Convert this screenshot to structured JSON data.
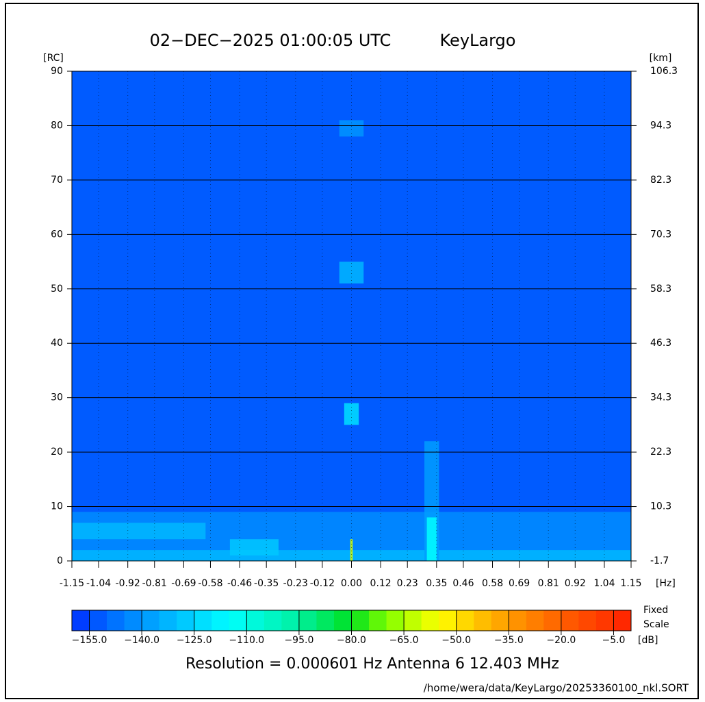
{
  "chart_data": {
    "type": "heatmap",
    "title": "02−DEC−2025 01:00:05 UTC",
    "station": "KeyLargo",
    "y_label": "[RC]",
    "y2_label": "[km]",
    "x_label": "[Hz]",
    "colorbar_label": "[dB]",
    "colorbar_note": [
      "Fixed",
      "Scale"
    ],
    "info": "Resolution = 0.000601 Hz   Antenna  6   12.403 MHz",
    "footer": "/home/wera/data/KeyLargo/20253360100_nkl.SORT",
    "xlim": [
      -1.15,
      1.15
    ],
    "xticks": [
      -1.15,
      -1.04,
      -0.92,
      -0.81,
      -0.69,
      -0.58,
      -0.46,
      -0.35,
      -0.23,
      -0.12,
      {
        "value": 0,
        "label": "0.00"
      },
      0.12,
      0.23,
      0.35,
      0.46,
      0.58,
      0.69,
      0.81,
      0.92,
      1.04,
      1.15
    ],
    "ylim": [
      0,
      90
    ],
    "yticks": [
      0,
      10,
      20,
      30,
      40,
      50,
      60,
      70,
      80,
      90
    ],
    "y2lim": [
      -1.7,
      106.3
    ],
    "y2ticks": [
      -1.7,
      10.3,
      22.3,
      34.3,
      46.3,
      58.3,
      70.3,
      82.3,
      94.3,
      106.3
    ],
    "grid": true,
    "background_value": -152,
    "cells": {
      "x0": [
        -1.15,
        -1.15,
        -1.15,
        -0.5,
        -0.05,
        -0.05,
        -0.03,
        0.3,
        0.31,
        -0.005
      ],
      "x1": [
        1.15,
        -0.6,
        1.15,
        -0.3,
        0.05,
        0.05,
        0.03,
        0.36,
        0.35,
        0.005
      ],
      "y0": [
        0,
        4,
        0,
        1,
        78,
        51,
        25,
        0,
        0,
        0
      ],
      "y1": [
        9,
        7,
        2,
        4,
        81,
        55,
        29,
        22,
        8,
        4
      ],
      "z": [
        -142,
        -132,
        -132,
        -128,
        -140,
        -132,
        -122,
        -138,
        -115,
        -60
      ]
    },
    "clim": [
      -160,
      0
    ],
    "colorbar_step": 5,
    "colorbar_ticks": [
      {
        "value": -155,
        "label": "−155.0"
      },
      {
        "value": -140,
        "label": "−140.0"
      },
      {
        "value": -125,
        "label": "−125.0"
      },
      {
        "value": -110,
        "label": "−110.0"
      },
      {
        "value": -95,
        "label": "−95.0"
      },
      {
        "value": -80,
        "label": "−80.0"
      },
      {
        "value": -65,
        "label": "−65.0"
      },
      {
        "value": -50,
        "label": "−50.0"
      },
      {
        "value": -35,
        "label": "−35.0"
      },
      {
        "value": -20,
        "label": "−20.0"
      },
      {
        "value": -5,
        "label": "−5.0"
      }
    ],
    "colorscale": {
      "values": [
        -160,
        -145,
        -115,
        -95,
        -80,
        -70,
        -55,
        -40,
        -20,
        0
      ],
      "colors": [
        "#0030ff",
        "#0080ff",
        "#00ffff",
        "#00f0a0",
        "#00e020",
        "#80ff00",
        "#ffff00",
        "#ffb000",
        "#ff6000",
        "#ff2000"
      ]
    }
  }
}
